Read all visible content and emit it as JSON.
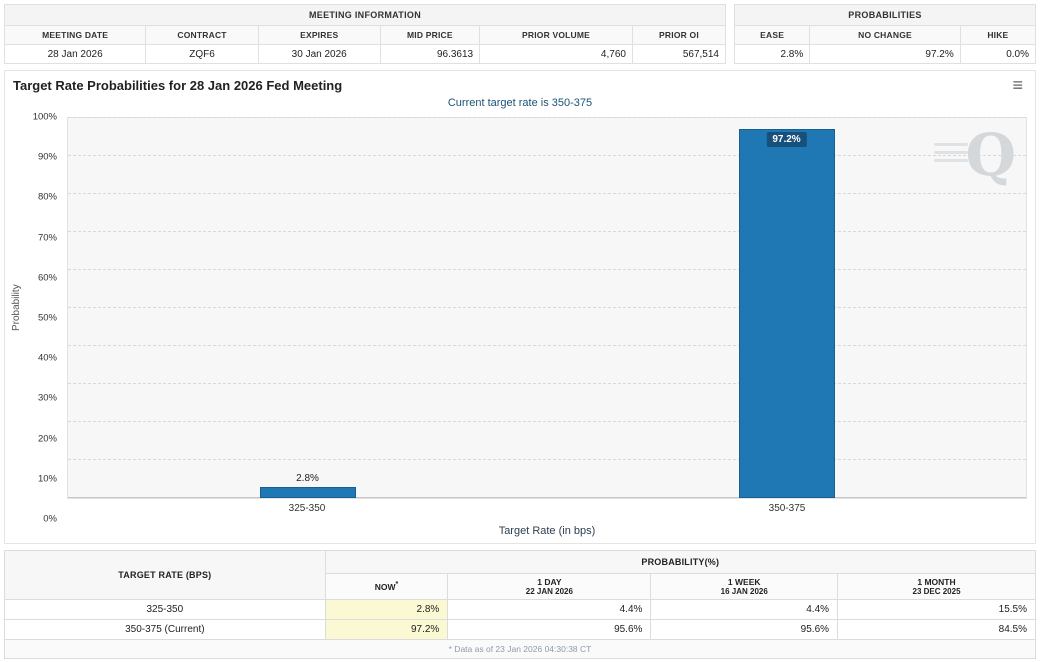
{
  "meeting_info": {
    "title": "MEETING INFORMATION",
    "columns": [
      "MEETING DATE",
      "CONTRACT",
      "EXPIRES",
      "MID PRICE",
      "PRIOR VOLUME",
      "PRIOR OI"
    ],
    "values": [
      "28 Jan 2026",
      "ZQF6",
      "30 Jan 2026",
      "96.3613",
      "4,760",
      "567,514"
    ]
  },
  "probabilities_info": {
    "title": "PROBABILITIES",
    "columns": [
      "EASE",
      "NO CHANGE",
      "HIKE"
    ],
    "values": [
      "2.8%",
      "97.2%",
      "0.0%"
    ]
  },
  "chart": {
    "title": "Target Rate Probabilities for 28 Jan 2026 Fed Meeting",
    "subtitle": "Current target rate is 350-375",
    "ylabel": "Probability",
    "xlabel": "Target Rate (in bps)",
    "menu_icon_glyph": "≡",
    "watermark_letter": "Q"
  },
  "chart_data": {
    "type": "bar",
    "categories": [
      "325-350",
      "350-375"
    ],
    "values": [
      2.8,
      97.2
    ],
    "labels": [
      "2.8%",
      "97.2%"
    ],
    "ylim": [
      0,
      100
    ],
    "yticks": [
      "0%",
      "10%",
      "20%",
      "30%",
      "40%",
      "50%",
      "60%",
      "70%",
      "80%",
      "90%",
      "100%"
    ],
    "grid": "horizontal-dashed",
    "legend": "none",
    "bar_color": "#1f77b4",
    "bar_border_color": "#15608f",
    "bar_centers_pct": [
      25,
      75
    ],
    "title": "Target Rate Probabilities for 28 Jan 2026 Fed Meeting",
    "xlabel": "Target Rate (in bps)",
    "ylabel": "Probability"
  },
  "history_table": {
    "target_rate_header": "TARGET RATE (BPS)",
    "probability_header": "PROBABILITY(%)",
    "subheaders": [
      {
        "top": "NOW",
        "sup": "*",
        "bottom": ""
      },
      {
        "top": "1 DAY",
        "bottom": "22 JAN 2026"
      },
      {
        "top": "1 WEEK",
        "bottom": "16 JAN 2026"
      },
      {
        "top": "1 MONTH",
        "bottom": "23 DEC 2025"
      }
    ],
    "rows": [
      {
        "label": "325-350",
        "values": [
          "2.8%",
          "4.4%",
          "4.4%",
          "15.5%"
        ]
      },
      {
        "label": "350-375 (Current)",
        "values": [
          "97.2%",
          "95.6%",
          "95.6%",
          "84.5%"
        ]
      }
    ],
    "footnote": "* Data as of 23 Jan 2026 04:30:38 CT"
  },
  "colors": {
    "bar": "#1f77b4",
    "highlight_cell": "#fbf9d3",
    "footer_bar": "#1e3c5c",
    "subtitle_text": "#1a5276"
  }
}
